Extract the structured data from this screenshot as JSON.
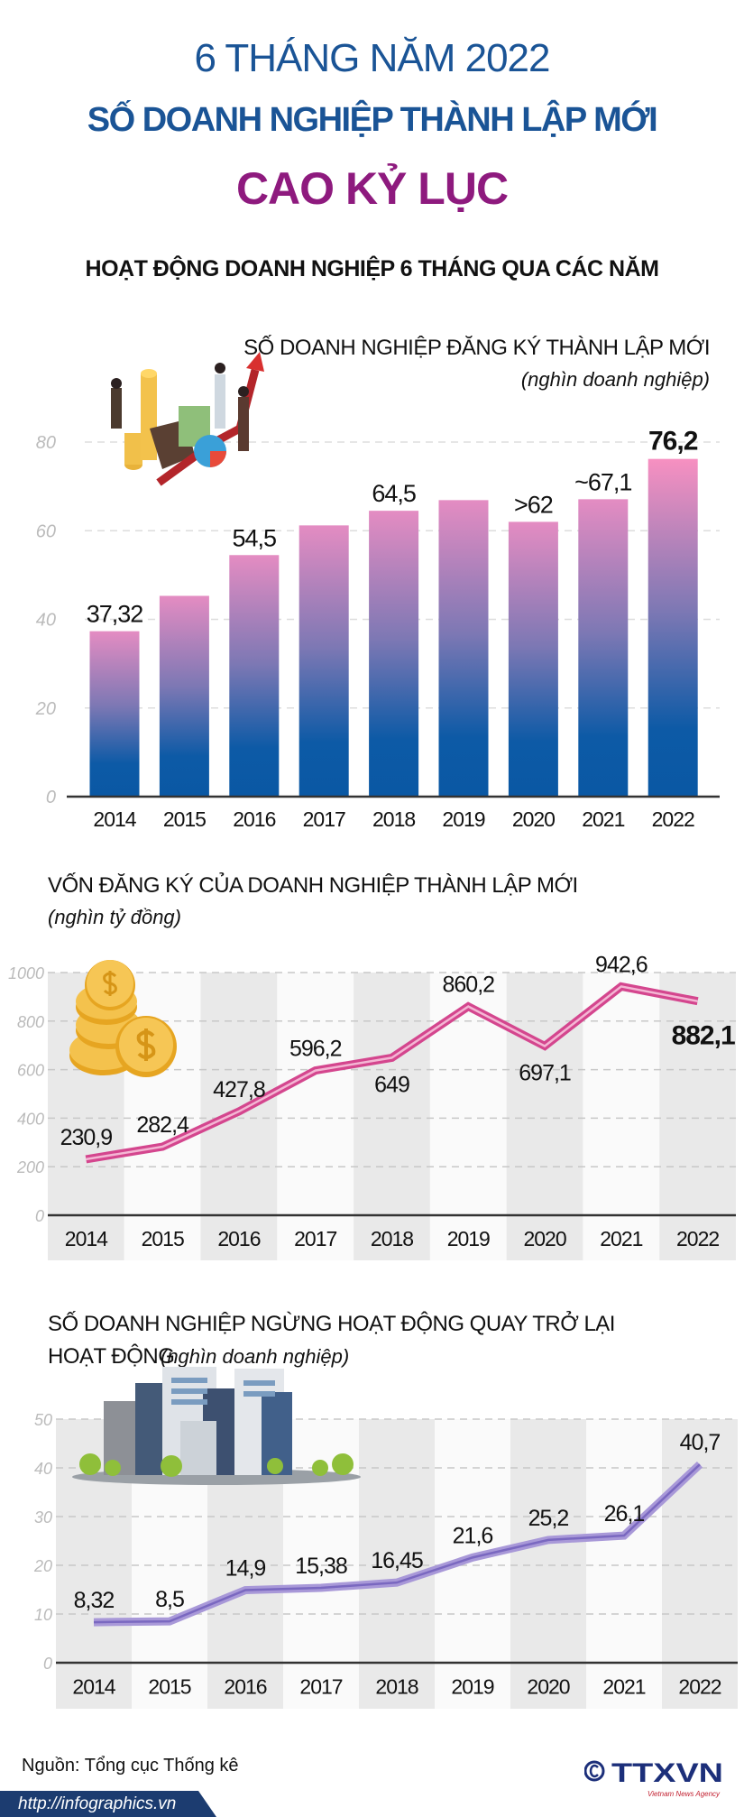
{
  "header": {
    "top_line": "6 THÁNG NĂM 2022",
    "title": "SỐ DOANH NGHIỆP THÀNH LẬP MỚI",
    "subtitle": "CAO KỶ LỤC",
    "section": "HOẠT ĐỘNG DOANH NGHIỆP 6 THÁNG QUA CÁC NĂM"
  },
  "colors": {
    "title_blue": "#1a5496",
    "title_purple": "#8e1a7e",
    "bar_top": "#e98fc4",
    "bar_bottom": "#0a5aa6",
    "line_capital": "#d4468e",
    "line_returning": "#8f7ccc"
  },
  "chart_data": [
    {
      "type": "bar",
      "title": "SỐ DOANH NGHIỆP ĐĂNG KÝ THÀNH LẬP MỚI",
      "unit": "(nghìn doanh nghiệp)",
      "categories": [
        "2014",
        "2015",
        "2016",
        "2017",
        "2018",
        "2019",
        "2020",
        "2021",
        "2022"
      ],
      "values": [
        37.32,
        45.3,
        54.5,
        61.2,
        64.5,
        66.9,
        62,
        67.1,
        76.2
      ],
      "data_labels": [
        "37,32",
        "",
        "54,5",
        "",
        "64,5",
        "",
        ">62",
        "~67,1",
        "76,2"
      ],
      "yticks": [
        "0",
        "20",
        "40",
        "60",
        "80"
      ],
      "ylim": [
        0,
        80
      ],
      "grid": true,
      "icon": "business-growth-illustration"
    },
    {
      "type": "line",
      "title": "VỐN ĐĂNG KÝ CỦA DOANH NGHIỆP THÀNH LẬP MỚI",
      "unit": "(nghìn tỷ đồng)",
      "categories": [
        "2014",
        "2015",
        "2016",
        "2017",
        "2018",
        "2019",
        "2020",
        "2021",
        "2022"
      ],
      "values": [
        230.9,
        282.4,
        427.8,
        596.2,
        649,
        860.2,
        697.1,
        942.6,
        882.1
      ],
      "data_labels": [
        "230,9",
        "282,4",
        "427,8",
        "596,2",
        "649",
        "860,2",
        "697,1",
        "942,6",
        "882,1"
      ],
      "yticks": [
        "0",
        "200",
        "400",
        "600",
        "800",
        "1000"
      ],
      "ylim": [
        0,
        1000
      ],
      "grid": true,
      "icon": "coins-icon"
    },
    {
      "type": "line",
      "title": "SỐ DOANH NGHIỆP NGỪNG HOẠT ĐỘNG QUAY TRỞ LẠI",
      "title_line2": "HOẠT ĐỘNG",
      "unit": "(nghìn doanh nghiệp)",
      "categories": [
        "2014",
        "2015",
        "2016",
        "2017",
        "2018",
        "2019",
        "2020",
        "2021",
        "2022"
      ],
      "values": [
        8.32,
        8.5,
        14.9,
        15.38,
        16.45,
        21.6,
        25.2,
        26.1,
        40.7
      ],
      "data_labels": [
        "8,32",
        "8,5",
        "14,9",
        "15,38",
        "16,45",
        "21,6",
        "25,2",
        "26,1",
        "40,7"
      ],
      "yticks": [
        "0",
        "10",
        "20",
        "30",
        "40",
        "50"
      ],
      "ylim": [
        0,
        50
      ],
      "grid": true,
      "icon": "buildings-illustration"
    }
  ],
  "footer": {
    "source": "Nguồn: Tổng cục Thống kê",
    "url": "http://infographics.vn",
    "logo_text": "TTXVN",
    "logo_sub": "Vietnam News Agency",
    "copyright": "©"
  }
}
